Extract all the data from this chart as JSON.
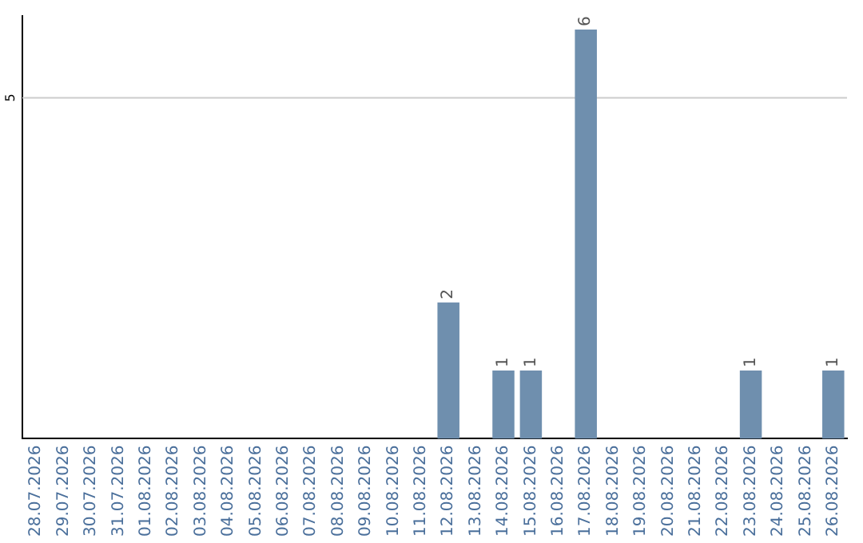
{
  "chart_data": {
    "type": "bar",
    "categories": [
      "28.07.2026",
      "29.07.2026",
      "30.07.2026",
      "31.07.2026",
      "01.08.2026",
      "02.08.2026",
      "03.08.2026",
      "04.08.2026",
      "05.08.2026",
      "06.08.2026",
      "07.08.2026",
      "08.08.2026",
      "09.08.2026",
      "10.08.2026",
      "11.08.2026",
      "12.08.2026",
      "13.08.2026",
      "14.08.2026",
      "15.08.2026",
      "16.08.2026",
      "17.08.2026",
      "18.08.2026",
      "19.08.2026",
      "20.08.2026",
      "21.08.2026",
      "22.08.2026",
      "23.08.2026",
      "24.08.2026",
      "25.08.2026",
      "26.08.2026"
    ],
    "values": [
      null,
      null,
      null,
      null,
      null,
      null,
      null,
      null,
      null,
      null,
      null,
      null,
      null,
      null,
      null,
      2,
      null,
      1,
      1,
      null,
      6,
      null,
      null,
      null,
      null,
      null,
      1,
      null,
      null,
      1
    ],
    "data_labels": true,
    "color": "#6f8fae",
    "ylim": [
      0,
      6.2
    ],
    "ref_lines": [
      {
        "axis": "y",
        "value": 5,
        "label": "5",
        "color": "#cccccc"
      }
    ],
    "legend": false
  }
}
